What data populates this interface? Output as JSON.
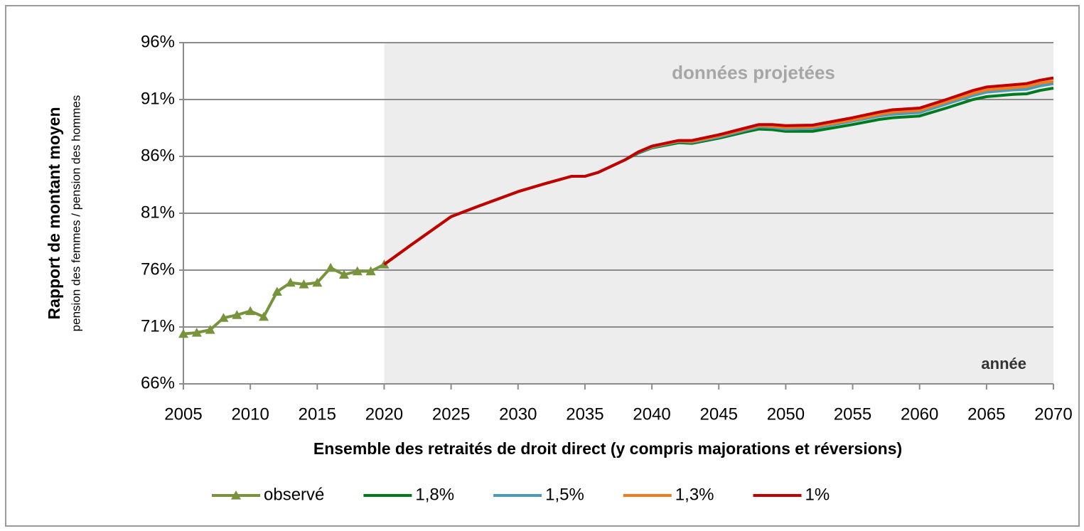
{
  "chart_data": {
    "type": "line",
    "y_label": "Rapport de montant moyen",
    "y_sublabel": "pension des femmes / pension des hommes",
    "x_label": "Ensemble des retraités de droit direct (y compris majorations et réversions)",
    "annotations": [
      "données projetées",
      "année"
    ],
    "shaded_xrange": [
      2020,
      2070
    ],
    "xlim": [
      2005,
      2070
    ],
    "xticks": [
      2005,
      2010,
      2015,
      2020,
      2025,
      2030,
      2035,
      2040,
      2045,
      2050,
      2055,
      2060,
      2065,
      2070
    ],
    "ylim": [
      66,
      96
    ],
    "yticks": [
      {
        "value": 66,
        "label": "66%"
      },
      {
        "value": 71,
        "label": "71%"
      },
      {
        "value": 76,
        "label": "76%"
      },
      {
        "value": 81,
        "label": "81%"
      },
      {
        "value": 86,
        "label": "86%"
      },
      {
        "value": 91,
        "label": "91%"
      },
      {
        "value": 96,
        "label": "96%"
      }
    ],
    "grid": true,
    "series": [
      {
        "name": "observé",
        "color": "#77933c",
        "marker": "triangle",
        "x": [
          2005,
          2006,
          2007,
          2008,
          2009,
          2010,
          2011,
          2012,
          2013,
          2014,
          2015,
          2016,
          2017,
          2018,
          2019,
          2020
        ],
        "values": [
          70.4,
          70.5,
          70.75,
          71.8,
          72.05,
          72.4,
          71.9,
          74.1,
          74.9,
          74.75,
          74.9,
          76.2,
          75.6,
          75.9,
          75.9,
          76.5
        ]
      },
      {
        "name": "1,8%",
        "color": "#007a1f",
        "x": [
          2020,
          2022,
          2025,
          2027,
          2030,
          2032,
          2034,
          2035,
          2036,
          2038,
          2039,
          2040,
          2042,
          2043,
          2045,
          2047,
          2048,
          2049,
          2050,
          2052,
          2055,
          2057,
          2058,
          2060,
          2062,
          2064,
          2065,
          2067,
          2068,
          2069,
          2070
        ],
        "values": [
          76.5,
          78.2,
          80.7,
          81.6,
          82.9,
          83.6,
          84.25,
          84.25,
          84.6,
          85.7,
          86.3,
          86.75,
          87.2,
          87.15,
          87.6,
          88.15,
          88.4,
          88.35,
          88.2,
          88.2,
          88.8,
          89.25,
          89.4,
          89.55,
          90.25,
          91.0,
          91.25,
          91.45,
          91.5,
          91.8,
          92.0
        ]
      },
      {
        "name": "1,5%",
        "color": "#4a9bb8",
        "x": [
          2020,
          2022,
          2025,
          2027,
          2030,
          2032,
          2034,
          2035,
          2036,
          2038,
          2039,
          2040,
          2042,
          2043,
          2045,
          2047,
          2048,
          2049,
          2050,
          2052,
          2055,
          2057,
          2058,
          2060,
          2062,
          2064,
          2065,
          2067,
          2068,
          2069,
          2070
        ],
        "values": [
          76.5,
          78.2,
          80.7,
          81.6,
          82.9,
          83.6,
          84.25,
          84.25,
          84.6,
          85.7,
          86.35,
          86.8,
          87.3,
          87.25,
          87.7,
          88.3,
          88.6,
          88.55,
          88.4,
          88.45,
          89.1,
          89.55,
          89.7,
          89.85,
          90.6,
          91.35,
          91.65,
          91.85,
          91.9,
          92.2,
          92.4
        ]
      },
      {
        "name": "1,3%",
        "color": "#f07c1e",
        "x": [
          2020,
          2022,
          2025,
          2027,
          2030,
          2032,
          2034,
          2035,
          2036,
          2038,
          2039,
          2040,
          2042,
          2043,
          2045,
          2047,
          2048,
          2049,
          2050,
          2052,
          2055,
          2057,
          2058,
          2060,
          2062,
          2064,
          2065,
          2067,
          2068,
          2069,
          2070
        ],
        "values": [
          76.5,
          78.2,
          80.7,
          81.6,
          82.9,
          83.6,
          84.25,
          84.25,
          84.6,
          85.7,
          86.4,
          86.85,
          87.35,
          87.3,
          87.8,
          88.4,
          88.7,
          88.65,
          88.55,
          88.6,
          89.2,
          89.7,
          89.9,
          90.05,
          90.8,
          91.55,
          91.85,
          92.05,
          92.15,
          92.45,
          92.6
        ]
      },
      {
        "name": "1%",
        "color": "#c00000",
        "x": [
          2020,
          2022,
          2025,
          2027,
          2030,
          2032,
          2034,
          2035,
          2036,
          2038,
          2039,
          2040,
          2042,
          2043,
          2045,
          2047,
          2048,
          2049,
          2050,
          2052,
          2055,
          2057,
          2058,
          2060,
          2062,
          2064,
          2065,
          2067,
          2068,
          2069,
          2070
        ],
        "values": [
          76.5,
          78.2,
          80.7,
          81.6,
          82.9,
          83.6,
          84.25,
          84.25,
          84.6,
          85.7,
          86.4,
          86.9,
          87.4,
          87.4,
          87.9,
          88.5,
          88.8,
          88.8,
          88.7,
          88.75,
          89.4,
          89.9,
          90.1,
          90.25,
          91.0,
          91.8,
          92.1,
          92.3,
          92.4,
          92.7,
          92.9
        ]
      }
    ]
  }
}
